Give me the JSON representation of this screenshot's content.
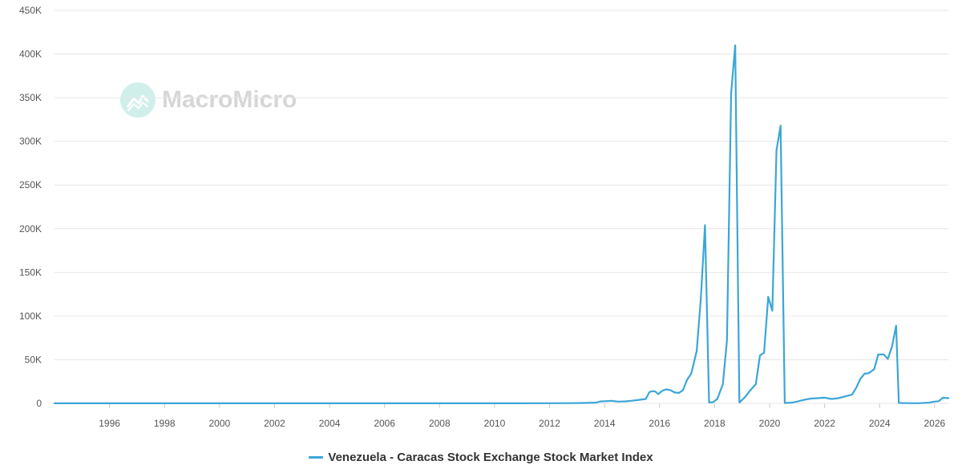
{
  "watermark": {
    "text": "MacroMicro",
    "icon": "macromicro-logo-icon"
  },
  "colors": {
    "series": "#3ba6d6",
    "grid": "#e6e6e6",
    "text": "#555555"
  },
  "chart_data": {
    "type": "line",
    "title": "",
    "xlabel": "",
    "ylabel": "",
    "xlim": [
      1994.0,
      2026.5
    ],
    "ylim": [
      0,
      450000
    ],
    "grid": true,
    "legend_position": "bottom-center",
    "y_ticks": [
      "0",
      "50K",
      "100K",
      "150K",
      "200K",
      "250K",
      "300K",
      "350K",
      "400K",
      "450K"
    ],
    "y_tick_values": [
      0,
      50000,
      100000,
      150000,
      200000,
      250000,
      300000,
      350000,
      400000,
      450000
    ],
    "x_ticks": [
      "1996",
      "1998",
      "2000",
      "2002",
      "2004",
      "2006",
      "2008",
      "2010",
      "2012",
      "2014",
      "2016",
      "2018",
      "2020",
      "2022",
      "2024",
      "2026"
    ],
    "x_tick_values": [
      1996,
      1998,
      2000,
      2002,
      2004,
      2006,
      2008,
      2010,
      2012,
      2014,
      2016,
      2018,
      2020,
      2022,
      2024,
      2026
    ],
    "series": [
      {
        "name": "Venezuela - Caracas Stock Exchange Stock Market Index",
        "color": "#3ba6d6",
        "points": [
          [
            1994.0,
            100
          ],
          [
            1998.0,
            100
          ],
          [
            2004.0,
            100
          ],
          [
            2010.0,
            100
          ],
          [
            2012.0,
            200
          ],
          [
            2012.75,
            300
          ],
          [
            2013.25,
            500
          ],
          [
            2013.7,
            900
          ],
          [
            2013.85,
            2200
          ],
          [
            2014.0,
            2500
          ],
          [
            2014.25,
            2800
          ],
          [
            2014.5,
            2000
          ],
          [
            2014.75,
            2300
          ],
          [
            2015.0,
            3000
          ],
          [
            2015.25,
            4000
          ],
          [
            2015.5,
            5000
          ],
          [
            2015.63,
            13000
          ],
          [
            2015.75,
            14000
          ],
          [
            2015.85,
            13500
          ],
          [
            2015.95,
            10500
          ],
          [
            2016.1,
            14500
          ],
          [
            2016.25,
            16000
          ],
          [
            2016.4,
            15000
          ],
          [
            2016.55,
            12500
          ],
          [
            2016.7,
            12000
          ],
          [
            2016.85,
            15000
          ],
          [
            2017.0,
            27000
          ],
          [
            2017.15,
            34000
          ],
          [
            2017.35,
            60000
          ],
          [
            2017.5,
            120000
          ],
          [
            2017.65,
            204000
          ],
          [
            2017.8,
            1000
          ],
          [
            2017.95,
            1500
          ],
          [
            2018.1,
            5000
          ],
          [
            2018.3,
            22000
          ],
          [
            2018.45,
            72000
          ],
          [
            2018.6,
            355000
          ],
          [
            2018.75,
            410000
          ],
          [
            2018.9,
            1000
          ],
          [
            2019.1,
            7000
          ],
          [
            2019.3,
            15000
          ],
          [
            2019.5,
            22000
          ],
          [
            2019.65,
            55000
          ],
          [
            2019.8,
            58000
          ],
          [
            2019.95,
            122000
          ],
          [
            2020.1,
            106000
          ],
          [
            2020.25,
            290000
          ],
          [
            2020.4,
            318000
          ],
          [
            2020.55,
            500
          ],
          [
            2020.8,
            800
          ],
          [
            2021.0,
            2000
          ],
          [
            2021.25,
            4000
          ],
          [
            2021.5,
            5500
          ],
          [
            2021.75,
            6000
          ],
          [
            2022.0,
            6500
          ],
          [
            2022.25,
            5000
          ],
          [
            2022.5,
            6000
          ],
          [
            2022.75,
            8000
          ],
          [
            2023.0,
            10000
          ],
          [
            2023.15,
            18000
          ],
          [
            2023.3,
            28000
          ],
          [
            2023.45,
            34000
          ],
          [
            2023.6,
            34500
          ],
          [
            2023.8,
            39000
          ],
          [
            2023.95,
            56000
          ],
          [
            2024.15,
            56000
          ],
          [
            2024.3,
            51000
          ],
          [
            2024.45,
            65000
          ],
          [
            2024.6,
            89000
          ],
          [
            2024.7,
            500
          ],
          [
            2025.0,
            300
          ],
          [
            2025.4,
            200
          ],
          [
            2025.8,
            800
          ],
          [
            2026.0,
            2000
          ],
          [
            2026.15,
            2500
          ],
          [
            2026.3,
            6500
          ],
          [
            2026.5,
            6000
          ]
        ]
      }
    ]
  }
}
